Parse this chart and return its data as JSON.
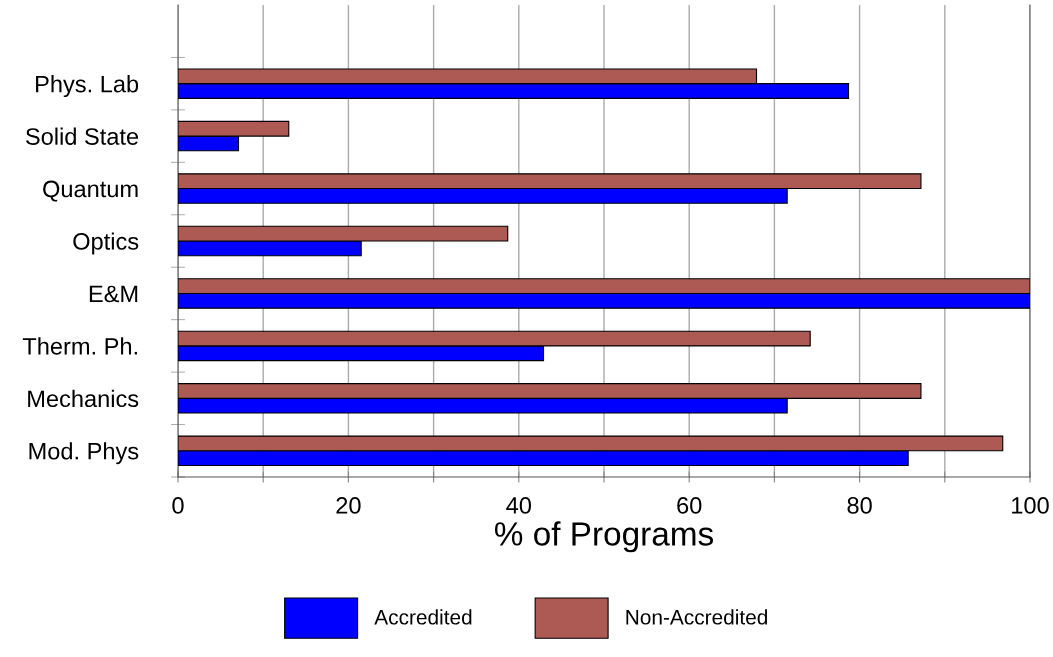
{
  "chart_data": {
    "type": "bar",
    "orientation": "horizontal",
    "xlabel": "% of Programs",
    "categories": [
      "Phys. Lab",
      "Solid State",
      "Quantum",
      "Optics",
      "E&M",
      "Therm. Ph.",
      "Mechanics",
      "Mod. Phys"
    ],
    "series": [
      {
        "name": "Accredited",
        "color": "#0000ff",
        "values": [
          78.7,
          7.1,
          71.5,
          21.5,
          100,
          42.9,
          71.5,
          85.7
        ]
      },
      {
        "name": "Non-Accredited",
        "color": "#ad5a55",
        "values": [
          67.9,
          13.0,
          87.2,
          38.7,
          100,
          74.2,
          87.2,
          96.8
        ]
      }
    ],
    "xlim": [
      0,
      100
    ],
    "xticks": [
      0,
      {
        "value": 10,
        "label": null
      },
      20,
      {
        "value": 30,
        "label": null
      },
      40,
      {
        "value": 50,
        "label": null
      },
      60,
      {
        "value": 70,
        "label": null
      },
      80,
      {
        "value": 90,
        "label": null
      },
      100
    ],
    "grid": "x",
    "legend": "bottom"
  }
}
